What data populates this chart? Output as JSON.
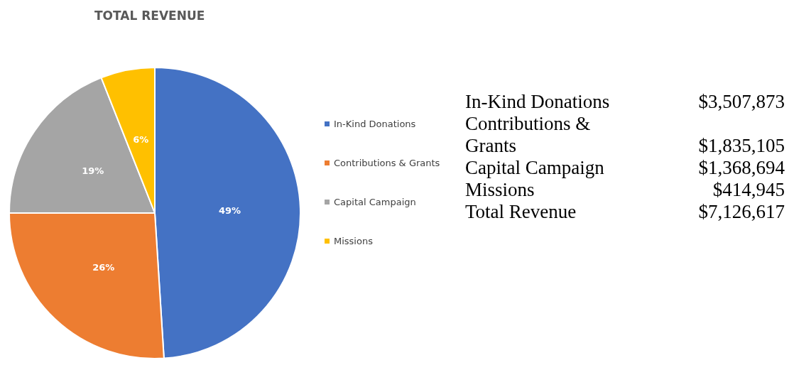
{
  "chart_data": {
    "type": "pie",
    "title": "TOTAL REVENUE",
    "categories": [
      "In-Kind Donations",
      "Contributions & Grants",
      "Capital Campaign",
      "Missions"
    ],
    "values": [
      49,
      26,
      19,
      6
    ],
    "value_labels": [
      "49%",
      "26%",
      "19%",
      "6%"
    ],
    "colors": [
      "#4472c4",
      "#ed7d31",
      "#a5a5a5",
      "#ffc000"
    ],
    "legend": "right",
    "annotations": [
      "In-Kind Donations",
      "$3,507,873",
      "Contributions & Grants",
      "$1,835,105",
      "Capital Campaign",
      "$1,368,694",
      "Missions",
      "$414,945",
      "Total Revenue",
      "$7,126,617"
    ]
  }
}
